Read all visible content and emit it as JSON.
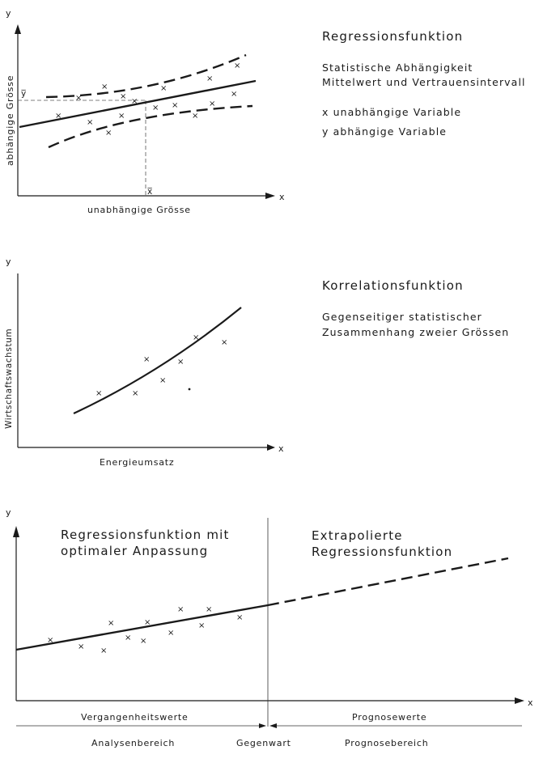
{
  "panel1": {
    "title": "Regressionsfunktion",
    "desc1": "Statistische Abhängigkeit",
    "desc2": "Mittelwert und Vertrauensintervall",
    "legend_x": "x  unabhängige Variable",
    "legend_y": "y  abhängige Variable",
    "y_axis": "y",
    "x_axis": "x",
    "y_label": "abhängige Grösse",
    "x_label": "unabhängige Grösse",
    "y_mean": "y̅",
    "x_mean": "x̅",
    "marker": "×"
  },
  "panel2": {
    "title": "Korrelationsfunktion",
    "desc1": "Gegenseitiger statistischer",
    "desc2": "Zusammenhang zweier Grössen",
    "y_axis": "y",
    "x_axis": "x",
    "y_label": "Wirtschaftswachstum",
    "x_label": "Energieumsatz",
    "marker": "×"
  },
  "panel3": {
    "y_axis": "y",
    "x_axis": "x",
    "left_title1": "Regressionsfunktion mit",
    "left_title2": "optimaler Anpassung",
    "right_title1": "Extrapolierte",
    "right_title2": "Regressionsfunktion",
    "past": "Vergangenheitswerte",
    "forecast": "Prognosewerte",
    "analysis": "Analysenbereich",
    "present": "Gegenwart",
    "forecast_range": "Prognosebereich",
    "marker": "×"
  }
}
